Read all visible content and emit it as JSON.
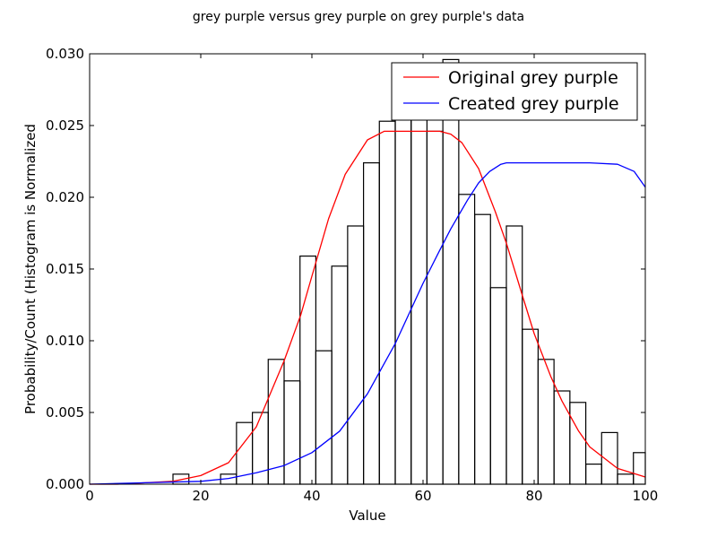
{
  "chart_data": {
    "type": "bar",
    "title": "grey purple versus grey purple on grey purple's data",
    "xlabel": "Value",
    "ylabel": "Probability/Count (Histogram is Normalized",
    "xlim": [
      0,
      100
    ],
    "ylim": [
      0,
      0.03
    ],
    "xticks": [
      "0",
      "20",
      "40",
      "60",
      "80",
      "100"
    ],
    "yticks": [
      "0.000",
      "0.005",
      "0.010",
      "0.015",
      "0.020",
      "0.025",
      "0.030"
    ],
    "grid": false,
    "legend_position": "top-right",
    "histogram": {
      "bin_edges": [
        15.0,
        17.86,
        20.71,
        23.57,
        26.43,
        29.29,
        32.14,
        35.0,
        37.86,
        40.71,
        43.57,
        46.43,
        49.29,
        52.14,
        55.0,
        57.86,
        60.71,
        63.57,
        66.43,
        69.29,
        72.14,
        75.0,
        77.86,
        80.71,
        83.57,
        86.43,
        89.29,
        92.14,
        95.0,
        97.86,
        100.71
      ],
      "heights": [
        0.0007,
        0.0,
        0.0,
        0.0007,
        0.0043,
        0.005,
        0.0087,
        0.0072,
        0.0159,
        0.0093,
        0.0152,
        0.018,
        0.0224,
        0.0253,
        0.027,
        0.0264,
        0.0246,
        0.0296,
        0.0202,
        0.0188,
        0.0137,
        0.018,
        0.0108,
        0.0087,
        0.0065,
        0.0057,
        0.0014,
        0.0036,
        0.0007,
        0.0022
      ],
      "color": "#000000"
    },
    "series": [
      {
        "name": "Original grey purple",
        "color": "#ff0000",
        "x": [
          0,
          5,
          10,
          15,
          20,
          25,
          30,
          35,
          38,
          40,
          43,
          46,
          50,
          53,
          55,
          58,
          60,
          63,
          65,
          67,
          70,
          73,
          75,
          78,
          80,
          83,
          85,
          88,
          90,
          95,
          100
        ],
        "y": [
          0.0,
          0.0,
          0.0001,
          0.0002,
          0.0006,
          0.0015,
          0.004,
          0.0086,
          0.0118,
          0.0145,
          0.0185,
          0.0216,
          0.024,
          0.0246,
          0.0246,
          0.0246,
          0.0246,
          0.0246,
          0.0244,
          0.0238,
          0.022,
          0.019,
          0.0168,
          0.013,
          0.0105,
          0.0075,
          0.0058,
          0.0037,
          0.0026,
          0.0011,
          0.0005
        ]
      },
      {
        "name": "Created grey purple",
        "color": "#0000ff",
        "x": [
          0,
          10,
          20,
          25,
          30,
          35,
          40,
          45,
          50,
          55,
          60,
          63,
          65,
          68,
          70,
          72,
          74,
          75,
          78,
          80,
          85,
          90,
          95,
          98,
          100
        ],
        "y": [
          0.0,
          0.0001,
          0.0002,
          0.0004,
          0.0008,
          0.0013,
          0.0022,
          0.0037,
          0.0063,
          0.0098,
          0.014,
          0.0163,
          0.0178,
          0.0198,
          0.021,
          0.0218,
          0.0223,
          0.0224,
          0.0224,
          0.0224,
          0.0224,
          0.0224,
          0.0223,
          0.0218,
          0.0207
        ]
      }
    ]
  }
}
